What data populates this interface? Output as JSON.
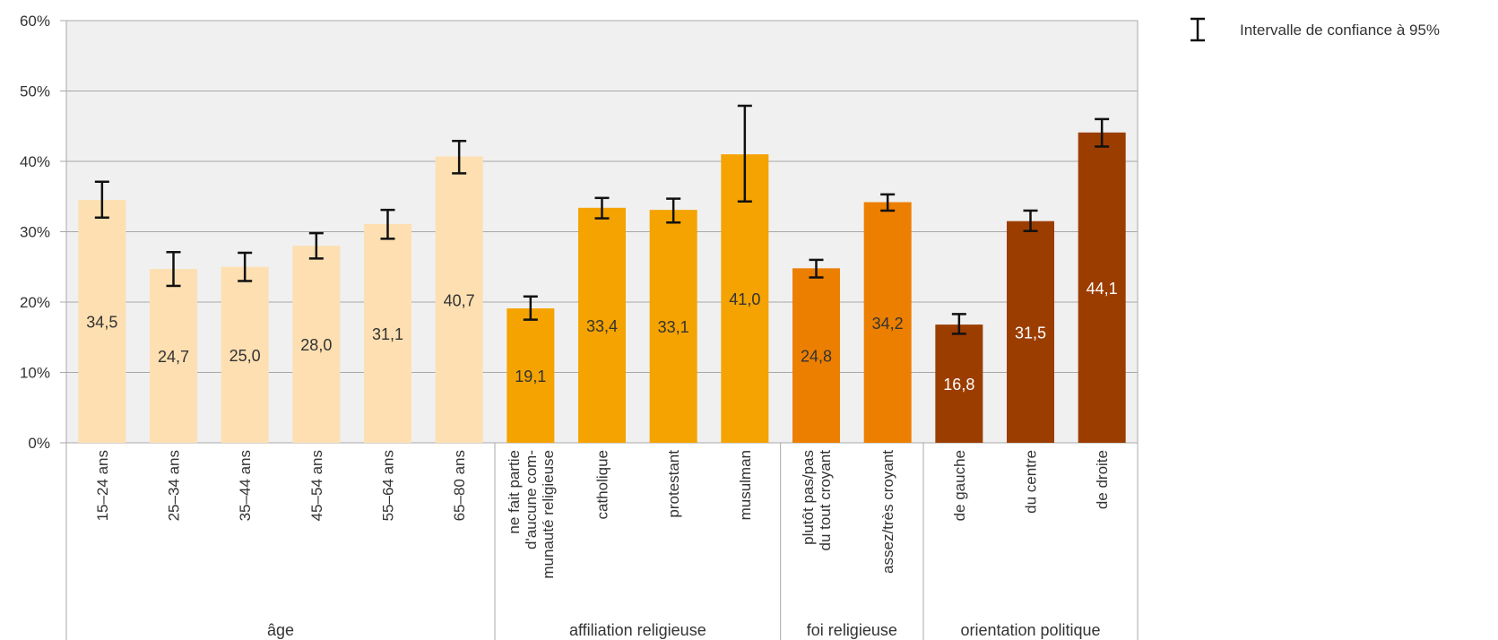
{
  "chart_data": {
    "type": "bar",
    "ylim": [
      0,
      60
    ],
    "y_ticks": [
      0,
      10,
      20,
      30,
      40,
      50,
      60
    ],
    "y_tick_labels": [
      "0%",
      "10%",
      "20%",
      "30%",
      "40%",
      "50%",
      "60%"
    ],
    "grid": true,
    "legend": {
      "position": "top-right",
      "label": "Intervalle de confiance à 95%"
    },
    "categories": [
      [
        "15–24 ans"
      ],
      [
        "25–34 ans"
      ],
      [
        "35–44 ans"
      ],
      [
        "45–54 ans"
      ],
      [
        "55–64 ans"
      ],
      [
        "65–80 ans"
      ],
      [
        "ne fait partie",
        "d'aucune com-",
        "munauté religieuse"
      ],
      [
        "catholique"
      ],
      [
        "protestant"
      ],
      [
        "musulman"
      ],
      [
        "plutôt pas/pas",
        "du tout croyant"
      ],
      [
        "assez/très croyant"
      ],
      [
        "de gauche"
      ],
      [
        "du centre"
      ],
      [
        "de droite"
      ]
    ],
    "values": [
      34.5,
      24.7,
      25.0,
      28.0,
      31.1,
      40.7,
      19.1,
      33.4,
      33.1,
      41.0,
      24.8,
      34.2,
      16.8,
      31.5,
      44.1
    ],
    "value_labels": [
      "34,5",
      "24,7",
      "25,0",
      "28,0",
      "31,1",
      "40,7",
      "19,1",
      "33,4",
      "33,1",
      "41,0",
      "24,8",
      "34,2",
      "16,8",
      "31,5",
      "44,1"
    ],
    "ci_low": [
      32.0,
      22.3,
      23.0,
      26.2,
      29.0,
      38.3,
      17.5,
      31.9,
      31.3,
      34.3,
      23.5,
      33.0,
      15.5,
      30.1,
      42.1
    ],
    "ci_high": [
      37.1,
      27.1,
      27.0,
      29.8,
      33.1,
      42.9,
      20.8,
      34.8,
      34.7,
      47.9,
      26.0,
      35.3,
      18.3,
      33.0,
      46.0
    ],
    "groups": [
      {
        "label": "âge",
        "start": 0,
        "end": 5,
        "color": "#FDDFB1",
        "label_color": "#333333"
      },
      {
        "label": "affiliation religieuse",
        "start": 6,
        "end": 9,
        "color": "#F4A300",
        "label_color": "#333333"
      },
      {
        "label": "foi religieuse",
        "start": 10,
        "end": 11,
        "color": "#EC7F00",
        "label_color": "#333333"
      },
      {
        "label": "orientation politique",
        "start": 12,
        "end": 14,
        "color": "#9C3D00",
        "label_color": "#ffffff"
      }
    ]
  }
}
